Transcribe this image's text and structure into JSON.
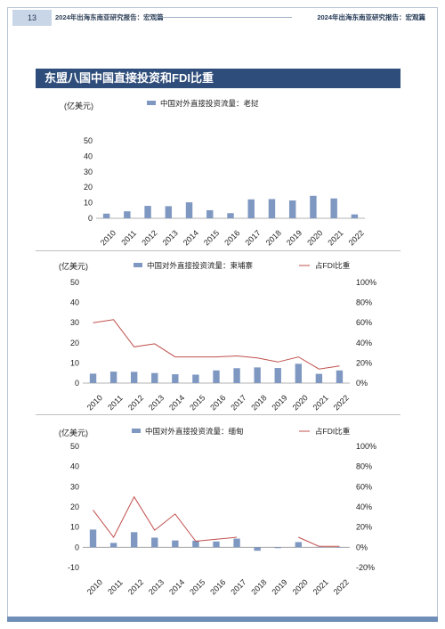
{
  "header": {
    "page_number": "13",
    "left_title": "2024年出海东南亚研究报告：宏观篇",
    "right_title": "2024年出海东南亚研究报告：宏观篇"
  },
  "section_title": "东盟八国中国直接投资和FDI比重",
  "colors": {
    "bar": "#7f98c2",
    "line": "#c0504d",
    "banner": "#2f4d7a"
  },
  "chart_data": [
    {
      "type": "bar",
      "unit_label": "(亿美元)",
      "categories": [
        "2010",
        "2011",
        "2012",
        "2013",
        "2014",
        "2015",
        "2016",
        "2017",
        "2018",
        "2019",
        "2020",
        "2021",
        "2022"
      ],
      "series": [
        {
          "name": "中国对外直接投资流量：老挝",
          "values": [
            3,
            4.5,
            8,
            7.8,
            10.3,
            5.2,
            3.3,
            12.2,
            12.4,
            11.5,
            14.5,
            12.8,
            2.5
          ]
        }
      ],
      "ylim": [
        0,
        50
      ],
      "yticks": [
        0,
        10,
        20,
        30,
        40,
        50
      ]
    },
    {
      "type": "bar+line",
      "unit_label": "(亿美元)",
      "categories": [
        "2010",
        "2011",
        "2012",
        "2013",
        "2014",
        "2015",
        "2016",
        "2017",
        "2018",
        "2019",
        "2020",
        "2021",
        "2022"
      ],
      "series": [
        {
          "name": "中国对外直接投资流量：柬埔寨",
          "type": "bar",
          "values": [
            4.7,
            5.7,
            5.6,
            5,
            4.4,
            4.2,
            6.3,
            7.4,
            7.8,
            7.5,
            9.6,
            4.6,
            6.3
          ]
        },
        {
          "name": "占FDI比重",
          "type": "line",
          "axis": "right",
          "values": [
            60,
            63,
            36,
            39,
            26,
            26,
            26,
            27,
            25,
            21,
            26,
            14,
            17
          ]
        }
      ],
      "ylim": [
        0,
        50
      ],
      "yticks": [
        0,
        10,
        20,
        30,
        40,
        50
      ],
      "y2lim": [
        0,
        100
      ],
      "y2ticks": [
        "0%",
        "20%",
        "40%",
        "60%",
        "80%",
        "100%"
      ]
    },
    {
      "type": "bar+line",
      "unit_label": "(亿美元)",
      "categories": [
        "2010",
        "2011",
        "2012",
        "2013",
        "2014",
        "2015",
        "2016",
        "2017",
        "2018",
        "2019",
        "2020",
        "2021",
        "2022"
      ],
      "series": [
        {
          "name": "中国对外直接投资流量：缅甸",
          "type": "bar",
          "values": [
            8.8,
            2.2,
            7.5,
            4.8,
            3.4,
            3.3,
            2.9,
            4.3,
            -1.7,
            -0.4,
            2.6,
            0.2,
            0.1
          ]
        },
        {
          "name": "占FDI比重",
          "type": "line",
          "axis": "right",
          "values": [
            37,
            10,
            50,
            17,
            33,
            6,
            8,
            10,
            null,
            null,
            10,
            1,
            1
          ]
        }
      ],
      "ylim": [
        -10,
        50
      ],
      "yticks": [
        -10,
        0,
        10,
        20,
        30,
        40,
        50
      ],
      "y2lim": [
        -20,
        100
      ],
      "y2ticks": [
        "-20%",
        "0%",
        "20%",
        "40%",
        "60%",
        "80%",
        "100%"
      ]
    }
  ]
}
